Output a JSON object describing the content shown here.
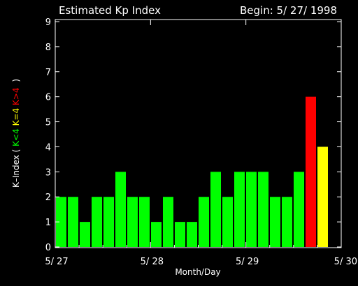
{
  "chart_data": {
    "type": "bar",
    "title": "Estimated Kp Index",
    "begin_label": "Begin: 5/ 27/ 1998",
    "xlabel": "Month/Day",
    "ylabel_prefix": "K–Index (",
    "ylabel_suffix": ")",
    "legend": [
      {
        "label": "K<4",
        "color": "#00ff00"
      },
      {
        "label": "K=4",
        "color": "#ffff00"
      },
      {
        "label": "K>4",
        "color": "#ff0000"
      }
    ],
    "ylim": [
      0,
      9
    ],
    "yticks": [
      "0",
      "1",
      "2",
      "3",
      "4",
      "5",
      "6",
      "7",
      "8",
      "9"
    ],
    "xlim": [
      0,
      24
    ],
    "xticks": [
      {
        "value": 0,
        "label": "5/ 27"
      },
      {
        "value": 8,
        "label": "5/ 28"
      },
      {
        "value": 16,
        "label": "5/ 29"
      },
      {
        "value": 24,
        "label": "5/ 30"
      }
    ],
    "values": [
      2,
      2,
      1,
      2,
      2,
      3,
      2,
      2,
      1,
      2,
      1,
      1,
      2,
      3,
      2,
      3,
      3,
      3,
      2,
      2,
      3,
      6,
      4
    ],
    "colors": {
      "low": "#00ff00",
      "equal": "#ffff00",
      "high": "#ff0000"
    }
  }
}
